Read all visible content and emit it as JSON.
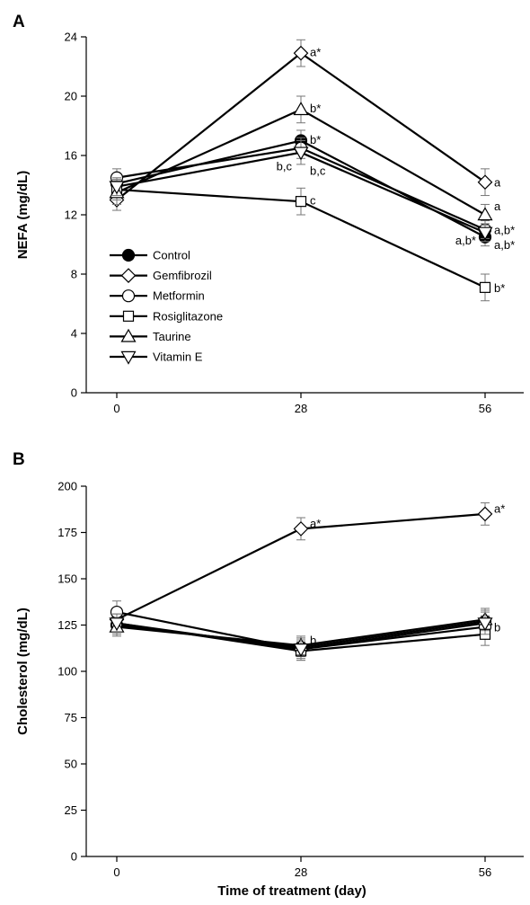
{
  "x_axis_title": "Time of treatment (day)",
  "legend": [
    {
      "label": "Control",
      "marker": "circle",
      "fill": "#000000"
    },
    {
      "label": "Gemfibrozil",
      "marker": "diamond",
      "fill": "#ffffff"
    },
    {
      "label": "Metformin",
      "marker": "circle",
      "fill": "#ffffff"
    },
    {
      "label": "Rosiglitazone",
      "marker": "square",
      "fill": "#ffffff"
    },
    {
      "label": "Taurine",
      "marker": "triangle-up",
      "fill": "#ffffff"
    },
    {
      "label": "Vitamin E",
      "marker": "triangle-down",
      "fill": "#ffffff"
    }
  ],
  "chart_data": [
    {
      "type": "line",
      "panel": "A",
      "ylabel": "NEFA (mg/dL)",
      "xlabel": "",
      "x": [
        0,
        28,
        56
      ],
      "xticks": [
        "0",
        "28",
        "56"
      ],
      "ylim": [
        0,
        24
      ],
      "yticks": [
        0,
        4,
        8,
        12,
        16,
        20,
        24
      ],
      "series": [
        {
          "name": "Control",
          "values": [
            14.1,
            17.0,
            10.5
          ],
          "errors": [
            0.6,
            0.7,
            0.6
          ]
        },
        {
          "name": "Gemfibrozil",
          "values": [
            13.0,
            22.9,
            14.2
          ],
          "errors": [
            0.7,
            0.9,
            0.9
          ]
        },
        {
          "name": "Metformin",
          "values": [
            14.5,
            16.5,
            11.0
          ],
          "errors": [
            0.6,
            0.7,
            0.6
          ]
        },
        {
          "name": "Rosiglitazone",
          "values": [
            13.7,
            12.9,
            7.1
          ],
          "errors": [
            0.7,
            0.9,
            0.9
          ]
        },
        {
          "name": "Taurine",
          "values": [
            13.5,
            19.1,
            12.0
          ],
          "errors": [
            0.8,
            0.9,
            0.7
          ]
        },
        {
          "name": "Vitamin E",
          "values": [
            13.9,
            16.2,
            10.8
          ],
          "errors": [
            0.6,
            0.8,
            0.6
          ]
        }
      ],
      "annotations": [
        {
          "text": "a*",
          "x": 28,
          "y": 23.0
        },
        {
          "text": "b*",
          "x": 28,
          "y": 19.2
        },
        {
          "text": "b*",
          "x": 28,
          "y": 17.1
        },
        {
          "text": "b,c",
          "x": 28,
          "y": 15.3,
          "side": "left"
        },
        {
          "text": "b,c",
          "x": 28,
          "y": 15.0
        },
        {
          "text": "c",
          "x": 28,
          "y": 13.0
        },
        {
          "text": "a",
          "x": 56,
          "y": 14.2
        },
        {
          "text": "a",
          "x": 56,
          "y": 12.6
        },
        {
          "text": "a,b*",
          "x": 56,
          "y": 11.0
        },
        {
          "text": "a,b*",
          "x": 56,
          "y": 10.3,
          "side": "left"
        },
        {
          "text": "a,b*",
          "x": 56,
          "y": 10.0
        },
        {
          "text": "b*",
          "x": 56,
          "y": 7.1
        }
      ]
    },
    {
      "type": "line",
      "panel": "B",
      "ylabel": "Cholesterol (mg/dL)",
      "xlabel": "",
      "x": [
        0,
        28,
        56
      ],
      "xticks": [
        "0",
        "28",
        "56"
      ],
      "ylim": [
        0,
        200
      ],
      "yticks": [
        0,
        25,
        50,
        75,
        100,
        125,
        150,
        175,
        200
      ],
      "series": [
        {
          "name": "Control",
          "values": [
            125,
            113,
            127
          ],
          "errors": [
            5,
            5,
            6
          ]
        },
        {
          "name": "Gemfibrozil",
          "values": [
            128,
            177,
            185
          ],
          "errors": [
            6,
            6,
            6
          ]
        },
        {
          "name": "Metformin",
          "values": [
            132,
            112,
            124
          ],
          "errors": [
            6,
            6,
            6
          ]
        },
        {
          "name": "Rosiglitazone",
          "values": [
            126,
            111,
            120
          ],
          "errors": [
            5,
            5,
            6
          ]
        },
        {
          "name": "Taurine",
          "values": [
            124,
            114,
            128
          ],
          "errors": [
            5,
            5,
            6
          ]
        },
        {
          "name": "Vitamin E",
          "values": [
            126,
            112,
            126
          ],
          "errors": [
            5,
            5,
            6
          ]
        }
      ],
      "annotations": [
        {
          "text": "a*",
          "x": 28,
          "y": 180
        },
        {
          "text": "a*",
          "x": 56,
          "y": 188
        },
        {
          "text": "b",
          "x": 28,
          "y": 117
        },
        {
          "text": "b",
          "x": 56,
          "y": 124
        }
      ]
    }
  ]
}
